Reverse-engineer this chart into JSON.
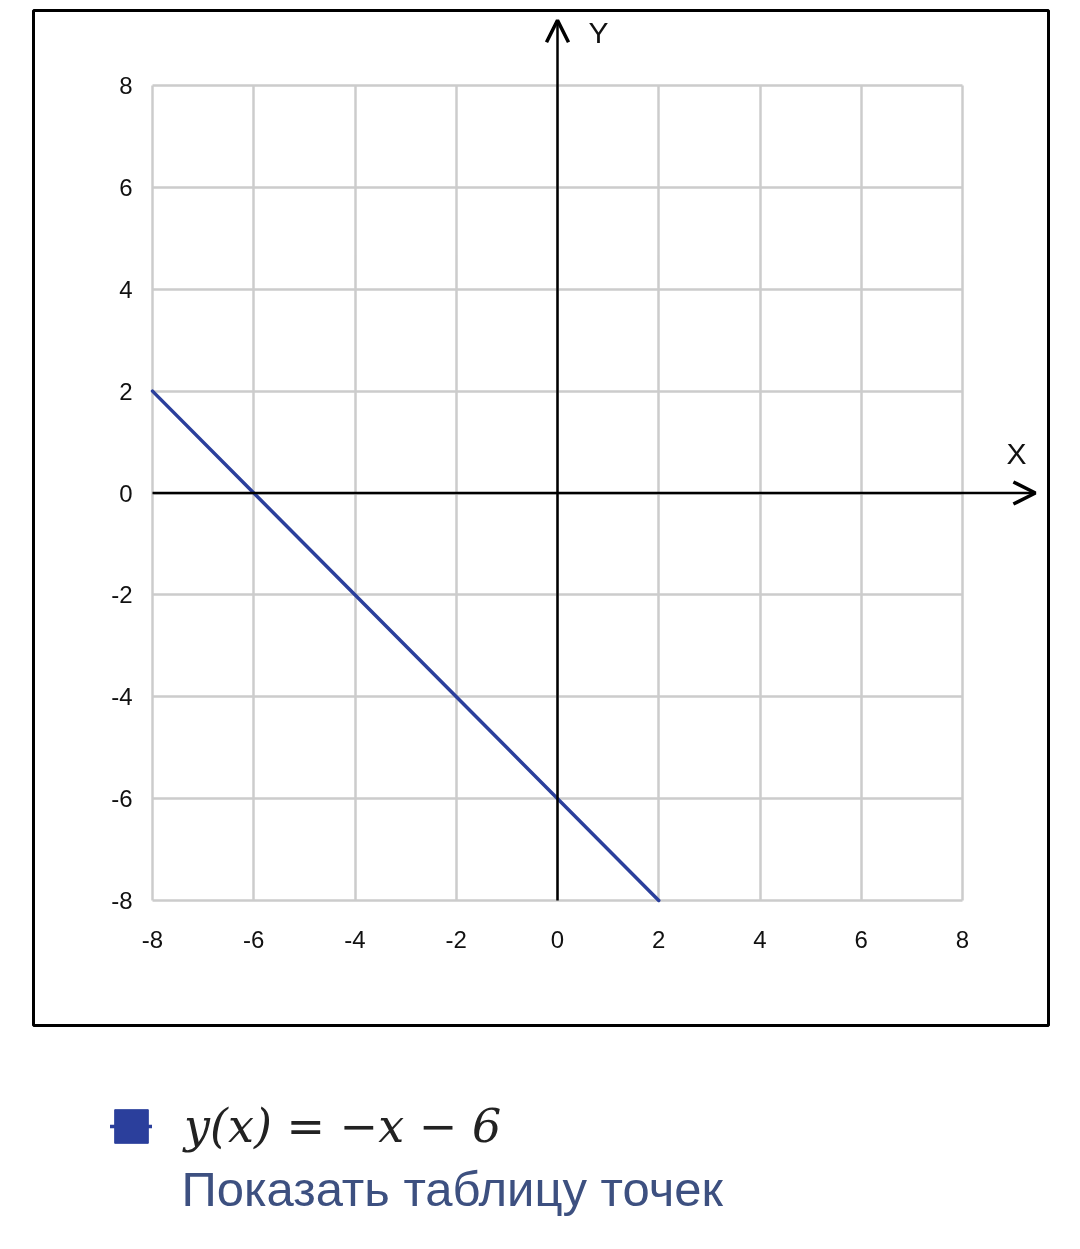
{
  "chart_data": {
    "type": "line",
    "xlabel": "X",
    "ylabel": "Y",
    "x": [
      -8,
      2
    ],
    "series": [
      {
        "name": "y(x) = −x − 6",
        "color": "#2b3f9c",
        "values": [
          2,
          -8
        ]
      }
    ],
    "xlim": [
      -8,
      8
    ],
    "ylim": [
      -8,
      8
    ],
    "xticks": [
      -8,
      -6,
      -4,
      -2,
      0,
      2,
      4,
      6,
      8
    ],
    "yticks": [
      -8,
      -6,
      -4,
      -2,
      0,
      2,
      4,
      6,
      8
    ],
    "grid": true,
    "legend": "bottom left",
    "annotations": [
      "Показать таблицу точек"
    ]
  }
}
